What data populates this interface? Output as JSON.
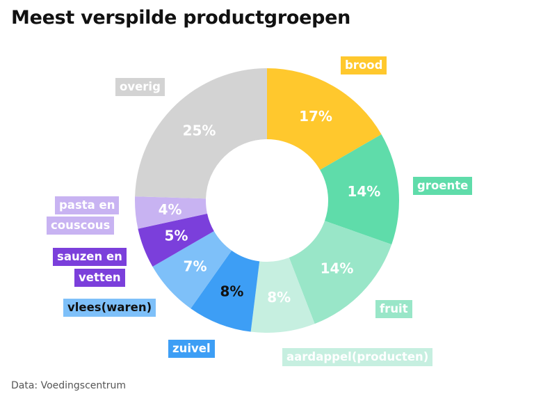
{
  "title": "Meest verspilde productgroepen",
  "source": "Data: Voedingscentrum",
  "chart_data": {
    "type": "pie",
    "donut": true,
    "unit": "%",
    "title": "Meest verspilde productgroepen",
    "legend": "labels placed beside slices",
    "slices": [
      {
        "label": "brood",
        "value": 17,
        "color": "#FFC82D",
        "text_color": "#ffffff",
        "label_bg": "#FFC82D",
        "label_color": "#ffffff",
        "label_lines": [
          "brood"
        ]
      },
      {
        "label": "groente",
        "value": 14,
        "color": "#5FDCAA",
        "text_color": "#ffffff",
        "label_bg": "#5FDCAA",
        "label_color": "#ffffff",
        "label_lines": [
          "groente"
        ]
      },
      {
        "label": "fruit",
        "value": 14,
        "color": "#99E6C8",
        "text_color": "#ffffff",
        "label_bg": "#99E6C8",
        "label_color": "#ffffff",
        "label_lines": [
          "fruit"
        ]
      },
      {
        "label": "aardappel(producten)",
        "value": 8,
        "color": "#C6EFE0",
        "text_color": "#ffffff",
        "label_bg": "#C6EFE0",
        "label_color": "#ffffff",
        "label_lines": [
          "aardappel(producten)"
        ]
      },
      {
        "label": "zuivel",
        "value": 8,
        "color": "#3D9EF5",
        "text_color": "#111111",
        "label_bg": "#3D9EF5",
        "label_color": "#ffffff",
        "label_lines": [
          "zuivel"
        ]
      },
      {
        "label": "vlees(waren)",
        "value": 7,
        "color": "#7EC0F9",
        "text_color": "#ffffff",
        "label_bg": "#7EC0F9",
        "label_color": "#111111",
        "label_lines": [
          "vlees(waren)"
        ]
      },
      {
        "label": "sauzen en vetten",
        "value": 5,
        "color": "#7B3FDB",
        "text_color": "#ffffff",
        "label_bg": "#7B3FDB",
        "label_color": "#ffffff",
        "label_lines": [
          "sauzen en",
          "vetten"
        ]
      },
      {
        "label": "pasta en couscous",
        "value": 4,
        "color": "#C8B3F2",
        "text_color": "#ffffff",
        "label_bg": "#C8B3F2",
        "label_color": "#ffffff",
        "label_lines": [
          "pasta en",
          "couscous"
        ]
      },
      {
        "label": "overig",
        "value": 25,
        "color": "#D3D3D3",
        "text_color": "#ffffff",
        "label_bg": "#D3D3D3",
        "label_color": "#ffffff",
        "label_lines": [
          "overig"
        ]
      }
    ]
  }
}
